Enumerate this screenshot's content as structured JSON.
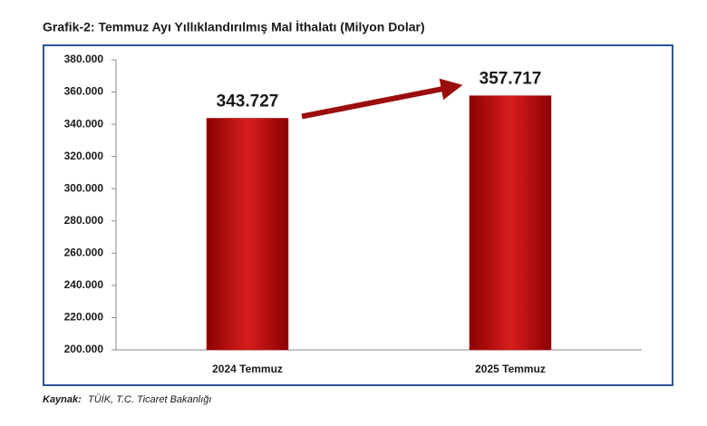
{
  "chart_data": {
    "type": "bar",
    "title": "Grafik-2: Temmuz Ayı Yıllıklandırılmış Mal İthalatı (Milyon Dolar)",
    "categories": [
      "2024 Temmuz",
      "2025 Temmuz"
    ],
    "values": [
      343727,
      357717
    ],
    "value_labels": [
      "343.727",
      "357.717"
    ],
    "color": "#c00000",
    "ylim": [
      200000,
      380000
    ],
    "yticks": [
      {
        "value": 200000,
        "label": "200.000"
      },
      {
        "value": 220000,
        "label": "220.000"
      },
      {
        "value": 240000,
        "label": "240.000"
      },
      {
        "value": 260000,
        "label": "260.000"
      },
      {
        "value": 280000,
        "label": "280.000"
      },
      {
        "value": 300000,
        "label": "300.000"
      },
      {
        "value": 320000,
        "label": "320.000"
      },
      {
        "value": 340000,
        "label": "340.000"
      },
      {
        "value": 360000,
        "label": "360.000"
      },
      {
        "value": 380000,
        "label": "380.000"
      }
    ],
    "grid": false,
    "source_label": "Kaynak:",
    "source": "TÜİK, T.C. Ticaret Bakanlığı"
  }
}
